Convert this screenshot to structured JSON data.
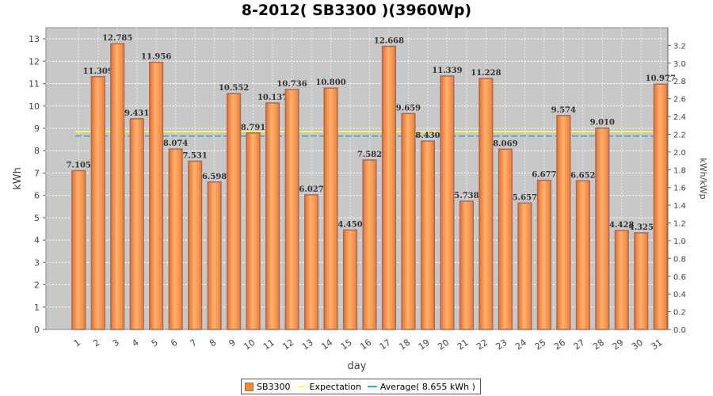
{
  "chart_data": {
    "type": "bar",
    "title": "8-2012( SB3300 )(3960Wp)",
    "xlabel": "day",
    "ylabel": "kWh",
    "y2label": "kWh/kWp",
    "ylim": [
      0,
      13.5
    ],
    "y2lim": [
      0,
      3.4
    ],
    "yticks": [
      "0",
      "1",
      "2",
      "3",
      "4",
      "5",
      "6",
      "7",
      "8",
      "9",
      "10",
      "11",
      "12",
      "13"
    ],
    "y2ticks": [
      "0.0",
      "0.2",
      "0.4",
      "0.6",
      "0.8",
      "1.0",
      "1.2",
      "1.4",
      "1.6",
      "1.8",
      "2.0",
      "2.2",
      "2.4",
      "2.6",
      "2.8",
      "3.0",
      "3.2"
    ],
    "categories": [
      "1",
      "2",
      "3",
      "4",
      "5",
      "6",
      "7",
      "8",
      "9",
      "10",
      "11",
      "12",
      "13",
      "14",
      "15",
      "16",
      "17",
      "18",
      "19",
      "20",
      "21",
      "22",
      "23",
      "24",
      "25",
      "26",
      "27",
      "28",
      "29",
      "30",
      "31"
    ],
    "value_labels": [
      "7.105",
      "11.309",
      "12.785",
      "9.431",
      "11.956",
      "8.074",
      "7.531",
      "6.598",
      "10.552",
      "8.791",
      "10.137",
      "10.736",
      "6.027",
      "10.800",
      "4.450",
      "7.582",
      "12.668",
      "9.659",
      "8.430",
      "11.339",
      "5.738",
      "11.228",
      "8.069",
      "5.657",
      "6.677",
      "9.574",
      "6.652",
      "9.010",
      "4.428",
      "4.325",
      "10.977"
    ],
    "series": [
      {
        "name": "SB3300",
        "color": "#f5893a",
        "values": [
          7.105,
          11.309,
          12.785,
          9.431,
          11.956,
          8.074,
          7.531,
          6.598,
          10.552,
          8.791,
          10.137,
          10.736,
          6.027,
          10.8,
          4.45,
          7.582,
          12.668,
          9.659,
          8.43,
          11.339,
          5.738,
          11.228,
          8.069,
          5.657,
          6.677,
          9.574,
          6.652,
          9.01,
          4.428,
          4.325,
          10.977
        ]
      }
    ],
    "lines": [
      {
        "name": "Expectation",
        "value": 8.85,
        "color": "#ffff66"
      },
      {
        "name": "Average( 8.655 kWh )",
        "value": 8.655,
        "color": "#22b5c8"
      }
    ],
    "grid": true,
    "legend": "bottom-center",
    "colors": {
      "plot_bg": "#c8c8c8",
      "bar_edge": "#a86a5a",
      "grid": "#ffffff"
    }
  }
}
